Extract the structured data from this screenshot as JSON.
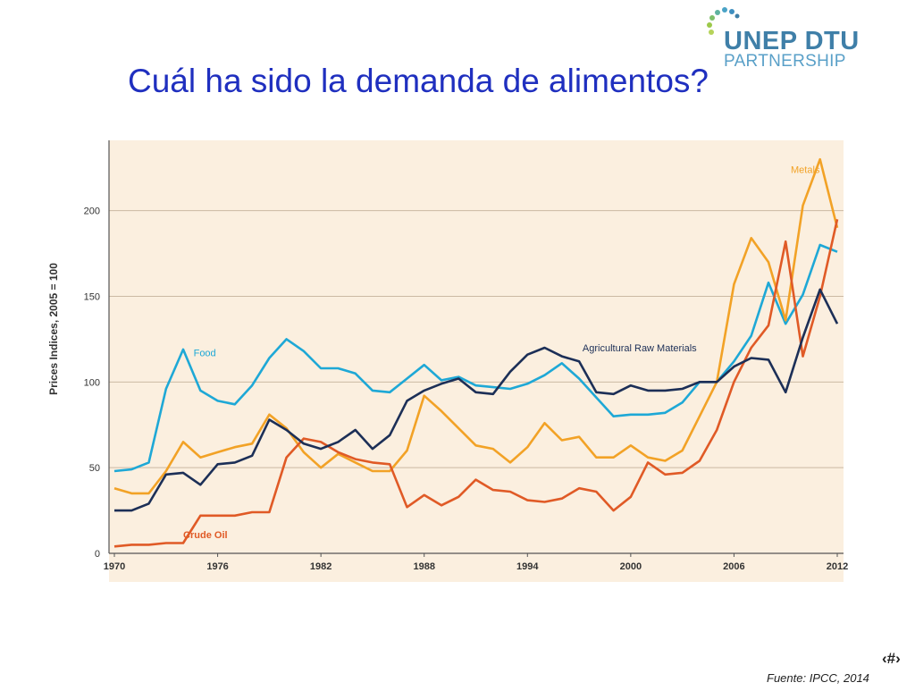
{
  "slide": {
    "title": "Cuál ha sido la demanda de alimentos?",
    "slide_number": "‹#›",
    "source": "Fuente: IPCC, 2014"
  },
  "logo": {
    "line1": "UNEP DTU",
    "line2": "PARTNERSHIP"
  },
  "colors": {
    "food": "#1ea8d6",
    "metals": "#f2a226",
    "crude_oil": "#e05a26",
    "agricultural": "#1c2f57",
    "plot_background": "#fbefdf",
    "title": "#1f2fbf"
  },
  "chart_data": {
    "type": "line",
    "title": "",
    "xlabel": "",
    "ylabel": "Prices Indices, 2005 = 100",
    "xlim": [
      1970,
      2012
    ],
    "ylim": [
      0,
      240
    ],
    "x_ticks": [
      1970,
      1976,
      1982,
      1988,
      1994,
      2000,
      2006,
      2012
    ],
    "y_ticks": [
      0,
      50,
      100,
      150,
      200
    ],
    "grid": "horizontal",
    "x": [
      1970,
      1971,
      1972,
      1973,
      1974,
      1975,
      1976,
      1977,
      1978,
      1979,
      1980,
      1981,
      1982,
      1983,
      1984,
      1985,
      1986,
      1987,
      1988,
      1989,
      1990,
      1991,
      1992,
      1993,
      1994,
      1995,
      1996,
      1997,
      1998,
      1999,
      2000,
      2001,
      2002,
      2003,
      2004,
      2005,
      2006,
      2007,
      2008,
      2009,
      2010,
      2011,
      2012
    ],
    "series": [
      {
        "name": "Food",
        "key": "food",
        "values": [
          48,
          49,
          53,
          96,
          119,
          95,
          89,
          87,
          98,
          114,
          125,
          118,
          108,
          108,
          105,
          95,
          94,
          102,
          110,
          101,
          103,
          98,
          97,
          96,
          99,
          104,
          111,
          102,
          91,
          80,
          81,
          81,
          82,
          88,
          100,
          100,
          112,
          127,
          158,
          134,
          151,
          180,
          176
        ]
      },
      {
        "name": "Metals",
        "key": "metals",
        "values": [
          38,
          35,
          35,
          48,
          65,
          56,
          59,
          62,
          64,
          81,
          73,
          59,
          50,
          58,
          53,
          48,
          48,
          60,
          92,
          83,
          73,
          63,
          61,
          53,
          62,
          76,
          66,
          68,
          56,
          56,
          63,
          56,
          54,
          60,
          80,
          100,
          157,
          184,
          170,
          136,
          203,
          230,
          190
        ]
      },
      {
        "name": "Crude Oil",
        "key": "crude_oil",
        "values": [
          4,
          5,
          5,
          6,
          6,
          22,
          22,
          22,
          24,
          24,
          56,
          67,
          65,
          59,
          55,
          53,
          52,
          27,
          34,
          28,
          33,
          43,
          37,
          36,
          31,
          30,
          32,
          38,
          36,
          25,
          33,
          53,
          46,
          47,
          54,
          72,
          100,
          120,
          133,
          182,
          115,
          150,
          195
        ]
      },
      {
        "name": "Agricultural Raw Materials",
        "key": "agricultural",
        "values": [
          25,
          25,
          29,
          46,
          47,
          40,
          52,
          53,
          57,
          78,
          72,
          64,
          61,
          65,
          72,
          61,
          69,
          89,
          95,
          99,
          102,
          94,
          93,
          106,
          116,
          120,
          115,
          112,
          94,
          93,
          98,
          95,
          95,
          96,
          100,
          100,
          109,
          114,
          113,
          94,
          126,
          154,
          134
        ]
      }
    ],
    "series_labels": [
      {
        "key": "food",
        "text": "Food"
      },
      {
        "key": "metals",
        "text": "Metals"
      },
      {
        "key": "crude_oil",
        "text": "Crude Oil"
      },
      {
        "key": "agricultural",
        "text": "Agricultural Raw Materials"
      }
    ]
  }
}
